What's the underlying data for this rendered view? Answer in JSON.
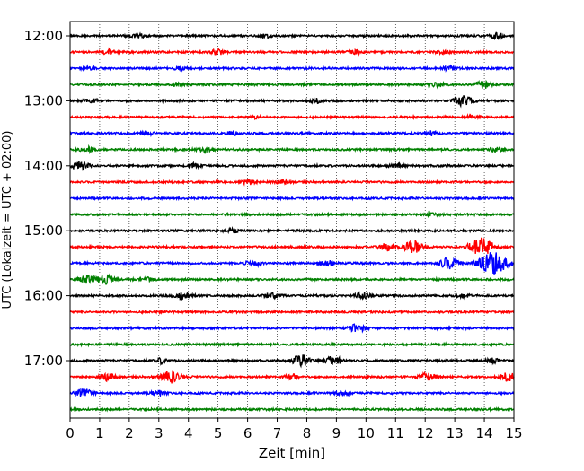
{
  "chart_data": {
    "type": "line",
    "subtype": "helicorder",
    "xlabel": "Zeit  [min]",
    "ylabel": "UTC (Lokalzeit = UTC + 02:00)",
    "xlim": [
      0,
      15
    ],
    "x_ticks": [
      0,
      1,
      2,
      3,
      4,
      5,
      6,
      7,
      8,
      9,
      10,
      11,
      12,
      13,
      14,
      15
    ],
    "x_tick_labels": [
      "0",
      "1",
      "2",
      "3",
      "4",
      "5",
      "6",
      "7",
      "8",
      "9",
      "10",
      "11",
      "12",
      "13",
      "14",
      "15"
    ],
    "y_tick_labels": [
      "12:00",
      "13:00",
      "14:00",
      "15:00",
      "16:00",
      "17:00"
    ],
    "y_tick_rows": [
      0,
      4,
      8,
      12,
      16,
      20
    ],
    "grid": "vertical dotted",
    "row_interval_minutes": 15,
    "trace_color_cycle": [
      "#000000",
      "#ff0000",
      "#0000ff",
      "#008000"
    ],
    "rows": [
      {
        "start": "12:00",
        "color": "#000000",
        "bursts": [
          [
            2.3,
            0.3
          ],
          [
            6.6,
            0.25
          ],
          [
            14.4,
            0.35
          ]
        ]
      },
      {
        "start": "12:15",
        "color": "#ff0000",
        "bursts": [
          [
            1.3,
            0.35
          ],
          [
            5.0,
            0.35
          ],
          [
            9.6,
            0.25
          ],
          [
            12.6,
            0.25
          ]
        ]
      },
      {
        "start": "12:30",
        "color": "#0000ff",
        "bursts": [
          [
            0.6,
            0.2
          ],
          [
            3.7,
            0.2
          ],
          [
            12.8,
            0.25
          ]
        ]
      },
      {
        "start": "12:45",
        "color": "#008000",
        "bursts": [
          [
            3.6,
            0.25
          ],
          [
            12.4,
            0.35
          ],
          [
            14.0,
            0.5
          ]
        ]
      },
      {
        "start": "13:00",
        "color": "#000000",
        "bursts": [
          [
            0.7,
            0.3
          ],
          [
            8.3,
            0.3
          ],
          [
            13.3,
            0.7
          ]
        ]
      },
      {
        "start": "13:15",
        "color": "#ff0000",
        "bursts": [
          [
            6.3,
            0.2
          ],
          [
            13.6,
            0.2
          ]
        ]
      },
      {
        "start": "13:30",
        "color": "#0000ff",
        "bursts": [
          [
            2.6,
            0.25
          ],
          [
            5.5,
            0.25
          ],
          [
            12.2,
            0.3
          ]
        ]
      },
      {
        "start": "13:45",
        "color": "#008000",
        "bursts": [
          [
            0.6,
            0.35
          ],
          [
            4.6,
            0.4
          ],
          [
            14.4,
            0.25
          ]
        ]
      },
      {
        "start": "14:00",
        "color": "#000000",
        "bursts": [
          [
            0.35,
            0.6
          ],
          [
            4.2,
            0.35
          ],
          [
            11.0,
            0.3
          ]
        ]
      },
      {
        "start": "14:15",
        "color": "#ff0000",
        "bursts": [
          [
            6.0,
            0.35
          ],
          [
            7.2,
            0.3
          ]
        ]
      },
      {
        "start": "14:30",
        "color": "#0000ff",
        "bursts": []
      },
      {
        "start": "14:45",
        "color": "#008000",
        "bursts": [
          [
            12.2,
            0.15
          ]
        ]
      },
      {
        "start": "15:00",
        "color": "#000000",
        "bursts": [
          [
            5.5,
            0.25
          ]
        ]
      },
      {
        "start": "15:15",
        "color": "#ff0000",
        "bursts": [
          [
            10.7,
            0.5
          ],
          [
            11.6,
            0.8
          ],
          [
            13.9,
            1.3
          ]
        ]
      },
      {
        "start": "15:30",
        "color": "#0000ff",
        "bursts": [
          [
            6.2,
            0.4
          ],
          [
            8.7,
            0.35
          ],
          [
            12.8,
            0.8
          ],
          [
            14.3,
            1.6
          ]
        ]
      },
      {
        "start": "15:45",
        "color": "#008000",
        "bursts": [
          [
            0.6,
            0.5
          ],
          [
            1.2,
            0.6
          ],
          [
            2.7,
            0.3
          ]
        ]
      },
      {
        "start": "16:00",
        "color": "#000000",
        "bursts": [
          [
            3.8,
            0.45
          ],
          [
            6.8,
            0.4
          ],
          [
            9.9,
            0.4
          ],
          [
            13.3,
            0.25
          ]
        ]
      },
      {
        "start": "16:15",
        "color": "#ff0000",
        "bursts": []
      },
      {
        "start": "16:30",
        "color": "#0000ff",
        "bursts": [
          [
            9.7,
            0.55
          ]
        ]
      },
      {
        "start": "16:45",
        "color": "#008000",
        "bursts": []
      },
      {
        "start": "17:00",
        "color": "#000000",
        "bursts": [
          [
            3.1,
            0.35
          ],
          [
            7.8,
            0.8
          ],
          [
            8.9,
            0.6
          ],
          [
            14.3,
            0.3
          ]
        ]
      },
      {
        "start": "17:15",
        "color": "#ff0000",
        "bursts": [
          [
            1.3,
            0.55
          ],
          [
            3.4,
            0.9
          ],
          [
            7.5,
            0.35
          ],
          [
            12.1,
            0.55
          ],
          [
            14.8,
            0.55
          ]
        ]
      },
      {
        "start": "17:30",
        "color": "#0000ff",
        "bursts": [
          [
            0.5,
            0.55
          ],
          [
            3.0,
            0.35
          ],
          [
            9.2,
            0.35
          ]
        ]
      },
      {
        "start": "17:45",
        "color": "#008000",
        "bursts": []
      }
    ]
  }
}
